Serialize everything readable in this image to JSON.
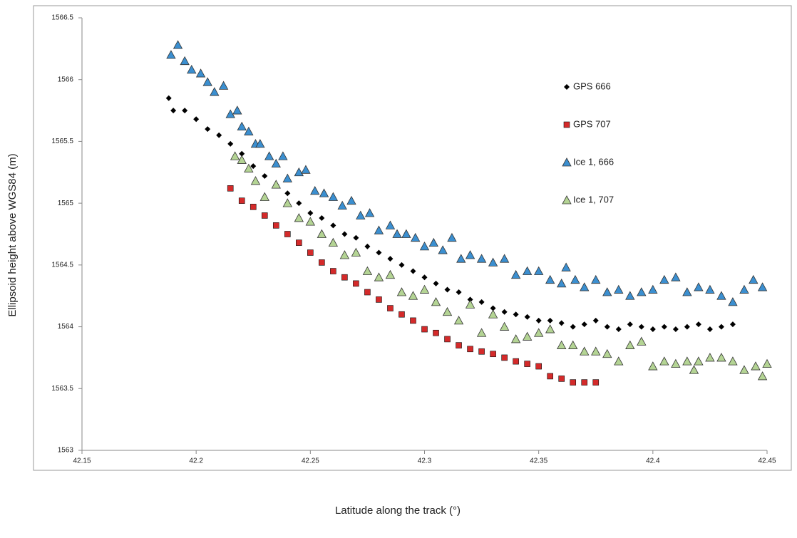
{
  "chart_data": {
    "type": "scatter",
    "x_label": "Latitude along the track (°)",
    "y_label": "Ellipsoid height above  WGS84 (m)",
    "xlim": [
      42.15,
      42.45
    ],
    "xticks": [
      42.15,
      42.2,
      42.25,
      42.3,
      42.35,
      42.4,
      42.45
    ],
    "ylim": [
      1563,
      1566.5
    ],
    "yticks": [
      1563,
      1563.5,
      1564,
      1564.5,
      1565,
      1565.5,
      1566,
      1566.5
    ],
    "grid": false,
    "legend": "right",
    "series": [
      {
        "name": "GPS 666",
        "color": "#000000",
        "marker": "diamond",
        "x": [
          42.188,
          42.19,
          42.195,
          42.2,
          42.205,
          42.21,
          42.215,
          42.22,
          42.225,
          42.23,
          42.235,
          42.24,
          42.245,
          42.25,
          42.255,
          42.26,
          42.265,
          42.27,
          42.275,
          42.28,
          42.285,
          42.29,
          42.295,
          42.3,
          42.305,
          42.31,
          42.315,
          42.32,
          42.325,
          42.33,
          42.335,
          42.34,
          42.345,
          42.35,
          42.355,
          42.36,
          42.365,
          42.37,
          42.375,
          42.38,
          42.385,
          42.39,
          42.395,
          42.4,
          42.405,
          42.41,
          42.415,
          42.42,
          42.425,
          42.43,
          42.435
        ],
        "values": [
          1565.85,
          1565.75,
          1565.75,
          1565.68,
          1565.6,
          1565.55,
          1565.48,
          1565.4,
          1565.3,
          1565.22,
          1565.15,
          1565.08,
          1565.0,
          1564.92,
          1564.88,
          1564.82,
          1564.75,
          1564.72,
          1564.65,
          1564.6,
          1564.55,
          1564.5,
          1564.45,
          1564.4,
          1564.35,
          1564.3,
          1564.28,
          1564.22,
          1564.2,
          1564.15,
          1564.12,
          1564.1,
          1564.08,
          1564.05,
          1564.05,
          1564.03,
          1564.0,
          1564.02,
          1564.05,
          1564.0,
          1563.98,
          1564.02,
          1564.0,
          1563.98,
          1564.0,
          1563.98,
          1564.0,
          1564.02,
          1563.98,
          1564.0,
          1564.02
        ]
      },
      {
        "name": "GPS 707",
        "color": "#d42a2a",
        "marker": "square",
        "x": [
          42.215,
          42.22,
          42.225,
          42.23,
          42.235,
          42.24,
          42.245,
          42.25,
          42.255,
          42.26,
          42.265,
          42.27,
          42.275,
          42.28,
          42.285,
          42.29,
          42.295,
          42.3,
          42.305,
          42.31,
          42.315,
          42.32,
          42.325,
          42.33,
          42.335,
          42.34,
          42.345,
          42.35,
          42.355,
          42.36,
          42.365,
          42.37,
          42.375
        ],
        "values": [
          1565.12,
          1565.02,
          1564.97,
          1564.9,
          1564.82,
          1564.75,
          1564.68,
          1564.6,
          1564.52,
          1564.45,
          1564.4,
          1564.35,
          1564.28,
          1564.22,
          1564.15,
          1564.1,
          1564.05,
          1563.98,
          1563.95,
          1563.9,
          1563.85,
          1563.82,
          1563.8,
          1563.78,
          1563.75,
          1563.72,
          1563.7,
          1563.68,
          1563.6,
          1563.58,
          1563.55,
          1563.55,
          1563.55
        ]
      },
      {
        "name": "Ice 1, 666",
        "color": "#3b8fd0",
        "marker": "triangle",
        "x": [
          42.189,
          42.192,
          42.195,
          42.198,
          42.202,
          42.205,
          42.208,
          42.212,
          42.215,
          42.218,
          42.22,
          42.223,
          42.226,
          42.228,
          42.232,
          42.235,
          42.238,
          42.24,
          42.245,
          42.248,
          42.252,
          42.256,
          42.26,
          42.264,
          42.268,
          42.272,
          42.276,
          42.28,
          42.285,
          42.288,
          42.292,
          42.296,
          42.3,
          42.304,
          42.308,
          42.312,
          42.316,
          42.32,
          42.325,
          42.33,
          42.335,
          42.34,
          42.345,
          42.35,
          42.355,
          42.36,
          42.362,
          42.366,
          42.37,
          42.375,
          42.38,
          42.385,
          42.39,
          42.395,
          42.4,
          42.405,
          42.41,
          42.415,
          42.42,
          42.425,
          42.43,
          42.435,
          42.44,
          42.444,
          42.448
        ],
        "values": [
          1566.2,
          1566.28,
          1566.15,
          1566.08,
          1566.05,
          1565.98,
          1565.9,
          1565.95,
          1565.72,
          1565.75,
          1565.62,
          1565.58,
          1565.48,
          1565.48,
          1565.38,
          1565.32,
          1565.38,
          1565.2,
          1565.25,
          1565.27,
          1565.1,
          1565.08,
          1565.05,
          1564.98,
          1565.02,
          1564.9,
          1564.92,
          1564.78,
          1564.82,
          1564.75,
          1564.75,
          1564.72,
          1564.65,
          1564.68,
          1564.62,
          1564.72,
          1564.55,
          1564.58,
          1564.55,
          1564.52,
          1564.55,
          1564.42,
          1564.45,
          1564.45,
          1564.38,
          1564.35,
          1564.48,
          1564.38,
          1564.32,
          1564.38,
          1564.28,
          1564.3,
          1564.25,
          1564.28,
          1564.3,
          1564.38,
          1564.4,
          1564.28,
          1564.32,
          1564.3,
          1564.25,
          1564.2,
          1564.3,
          1564.38,
          1564.32
        ]
      },
      {
        "name": "Ice 1, 707",
        "color": "#b4d494",
        "marker": "triangle",
        "x": [
          42.217,
          42.22,
          42.223,
          42.226,
          42.23,
          42.235,
          42.24,
          42.245,
          42.25,
          42.255,
          42.26,
          42.265,
          42.27,
          42.275,
          42.28,
          42.285,
          42.29,
          42.295,
          42.3,
          42.305,
          42.31,
          42.315,
          42.32,
          42.325,
          42.33,
          42.335,
          42.34,
          42.345,
          42.35,
          42.355,
          42.36,
          42.365,
          42.37,
          42.375,
          42.38,
          42.385,
          42.39,
          42.395,
          42.4,
          42.405,
          42.41,
          42.415,
          42.418,
          42.42,
          42.425,
          42.43,
          42.435,
          42.44,
          42.445,
          42.448,
          42.45
        ],
        "values": [
          1565.38,
          1565.35,
          1565.28,
          1565.18,
          1565.05,
          1565.15,
          1565.0,
          1564.88,
          1564.85,
          1564.75,
          1564.68,
          1564.58,
          1564.6,
          1564.45,
          1564.4,
          1564.42,
          1564.28,
          1564.25,
          1564.3,
          1564.2,
          1564.12,
          1564.05,
          1564.18,
          1563.95,
          1564.1,
          1564.0,
          1563.9,
          1563.92,
          1563.95,
          1563.98,
          1563.85,
          1563.85,
          1563.8,
          1563.8,
          1563.78,
          1563.72,
          1563.85,
          1563.88,
          1563.68,
          1563.72,
          1563.7,
          1563.72,
          1563.65,
          1563.72,
          1563.75,
          1563.75,
          1563.72,
          1563.65,
          1563.68,
          1563.6,
          1563.7
        ]
      }
    ]
  }
}
